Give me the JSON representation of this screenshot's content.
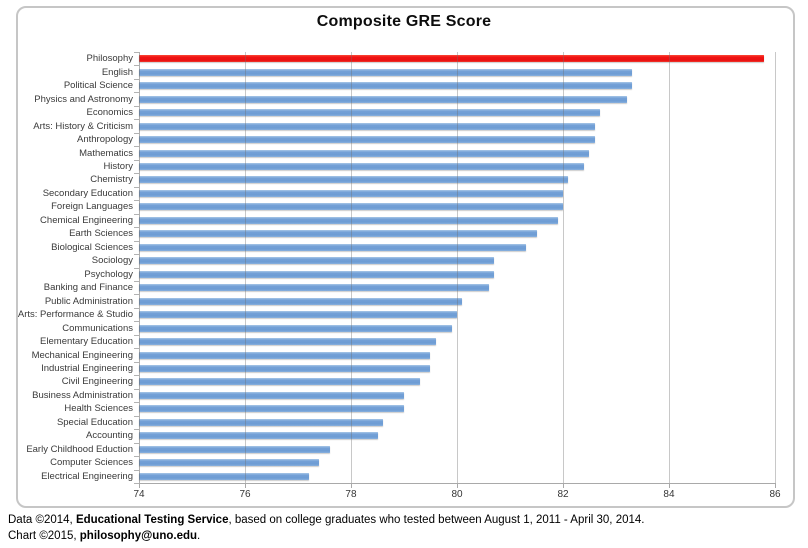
{
  "title": "Composite GRE Score",
  "footer": {
    "line1_prefix": "Data ©2014, ",
    "line1_bold": "Educational Testing Service",
    "line1_suffix": ", based on college graduates who tested between August 1, 2011 - April 30, 2014.",
    "line2_prefix": "Chart ©2015, ",
    "line2_bold": "philosophy@uno.edu",
    "line2_suffix": "."
  },
  "chart_data": {
    "type": "bar",
    "orientation": "horizontal",
    "title": "Composite GRE Score",
    "categories": [
      "Philosophy",
      "English",
      "Political Science",
      "Physics and Astronomy",
      "Economics",
      "Arts: History & Criticism",
      "Anthropology",
      "Mathematics",
      "History",
      "Chemistry",
      "Secondary Education",
      "Foreign Languages",
      "Chemical Engineering",
      "Earth Sciences",
      "Biological Sciences",
      "Sociology",
      "Psychology",
      "Banking and Finance",
      "Public Administration",
      "Arts: Performance & Studio",
      "Communications",
      "Elementary Education",
      "Mechanical Engineering",
      "Industrial Engineering",
      "Civil Engineering",
      "Business Administration",
      "Health Sciences",
      "Special Education",
      "Accounting",
      "Early Childhood Eduction",
      "Computer Sciences",
      "Electrical Engineering"
    ],
    "values": [
      85.8,
      83.3,
      83.3,
      83.2,
      82.7,
      82.6,
      82.6,
      82.5,
      82.4,
      82.1,
      82.0,
      82.0,
      81.9,
      81.5,
      81.3,
      80.7,
      80.7,
      80.6,
      80.1,
      80.0,
      79.9,
      79.6,
      79.5,
      79.5,
      79.3,
      79.0,
      79.0,
      78.6,
      78.5,
      77.6,
      77.4,
      77.2
    ],
    "highlight_category": "Philosophy",
    "bar_color": "#6D9CD4",
    "highlight_color": "#EE1414",
    "xlim": [
      74,
      86
    ],
    "x_ticks": [
      74,
      76,
      78,
      80,
      82,
      84,
      86
    ],
    "grid": true,
    "xlabel": "",
    "ylabel": ""
  }
}
